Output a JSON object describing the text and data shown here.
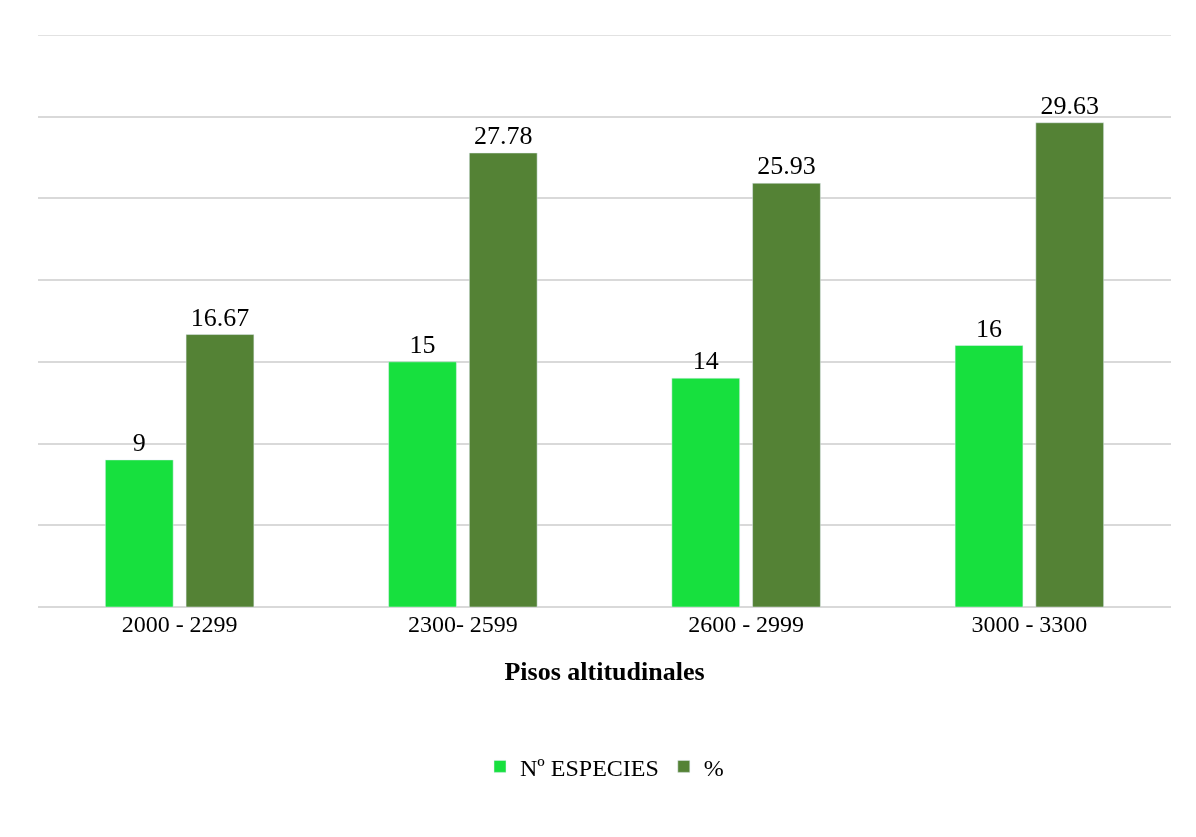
{
  "chart_data": {
    "type": "bar",
    "xlabel": "Pisos altitudinales",
    "categories": [
      "2000 - 2299",
      "2300- 2599",
      "2600 - 2999",
      "3000 - 3300"
    ],
    "series": [
      {
        "name": "Nº ESPECIES",
        "color": "#17e03e",
        "values": [
          9,
          15,
          14,
          16
        ]
      },
      {
        "name": "%",
        "color": "#548235",
        "values": [
          16.67,
          27.78,
          25.93,
          29.63
        ]
      }
    ],
    "ylim": [
      0,
      35
    ],
    "yticks": [
      {
        "value": 0,
        "label": null
      },
      {
        "value": 5,
        "label": null
      },
      {
        "value": 10,
        "label": null
      },
      {
        "value": 15,
        "label": null
      },
      {
        "value": 20,
        "label": null
      },
      {
        "value": 25,
        "label": null
      },
      {
        "value": 30,
        "label": null
      },
      {
        "value": 35,
        "label": null
      }
    ],
    "data_labels": true,
    "grid": "y",
    "legend": "bottom",
    "tick_labels": "x"
  }
}
